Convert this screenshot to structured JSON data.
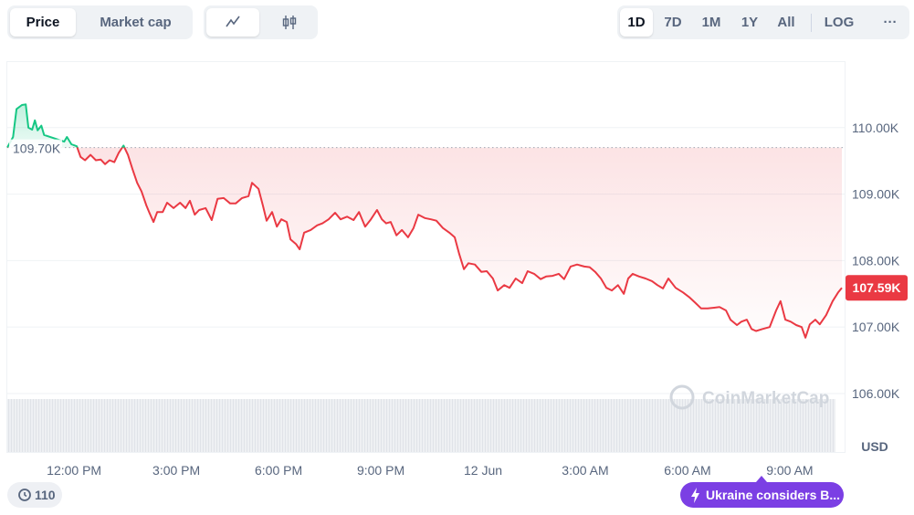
{
  "toolbar": {
    "tabs": [
      "Price",
      "Market cap"
    ],
    "ranges": [
      "1D",
      "7D",
      "1M",
      "1Y",
      "All"
    ],
    "log": "LOG",
    "more": "···"
  },
  "chart_data": {
    "type": "line",
    "ylabel": "USD",
    "watermark": "CoinMarketCap",
    "colors": {
      "up": "#16c784",
      "down": "#ea3943"
    },
    "xlim": [
      10.04,
      34.61
    ],
    "ylim": [
      105120,
      111000
    ],
    "xticks": [
      {
        "value": 12,
        "label": "12:00 PM"
      },
      {
        "value": 15,
        "label": "3:00 PM"
      },
      {
        "value": 18,
        "label": "6:00 PM"
      },
      {
        "value": 21,
        "label": "9:00 PM"
      },
      {
        "value": 24,
        "label": "12 Jun"
      },
      {
        "value": 27,
        "label": "3:00 AM"
      },
      {
        "value": 30,
        "label": "6:00 AM"
      },
      {
        "value": 33,
        "label": "9:00 AM"
      }
    ],
    "yticks": [
      {
        "value": 106000,
        "label": "106.00K"
      },
      {
        "value": 107000,
        "label": "107.00K"
      },
      {
        "value": 108000,
        "label": "108.00K"
      },
      {
        "value": 109000,
        "label": "109.00K"
      },
      {
        "value": 110000,
        "label": "110.00K"
      }
    ],
    "grid": true,
    "baseline": {
      "value": 109700,
      "label": "109.70K"
    },
    "current_price": {
      "value": 107590,
      "label": "107.59K"
    },
    "x": [
      10.04,
      10.21,
      10.31,
      10.47,
      10.58,
      10.66,
      10.77,
      10.85,
      10.93,
      11.04,
      11.12,
      11.71,
      11.79,
      11.92,
      12.08,
      12.19,
      12.32,
      12.48,
      12.64,
      12.78,
      12.91,
      13.04,
      13.18,
      13.31,
      13.45,
      13.58,
      13.71,
      13.85,
      13.98,
      14.12,
      14.2,
      14.33,
      14.44,
      14.6,
      14.73,
      14.92,
      15.11,
      15.27,
      15.4,
      15.54,
      15.67,
      15.86,
      16.04,
      16.21,
      16.39,
      16.58,
      16.74,
      16.93,
      17.12,
      17.22,
      17.41,
      17.54,
      17.65,
      17.81,
      17.95,
      18.08,
      18.24,
      18.35,
      18.51,
      18.62,
      18.75,
      18.94,
      19.13,
      19.29,
      19.47,
      19.66,
      19.82,
      20.01,
      20.2,
      20.36,
      20.54,
      20.71,
      20.89,
      21.03,
      21.16,
      21.29,
      21.46,
      21.62,
      21.8,
      21.96,
      22.1,
      22.29,
      22.47,
      22.63,
      22.82,
      23.01,
      23.17,
      23.3,
      23.44,
      23.57,
      23.76,
      23.95,
      24.11,
      24.29,
      24.43,
      24.62,
      24.78,
      24.96,
      25.15,
      25.31,
      25.5,
      25.69,
      25.85,
      26.04,
      26.22,
      26.38,
      26.57,
      26.76,
      26.97,
      27.13,
      27.29,
      27.46,
      27.62,
      27.78,
      27.96,
      28.13,
      28.26,
      28.39,
      28.58,
      28.77,
      28.96,
      29.12,
      29.28,
      29.44,
      29.65,
      29.87,
      30.05,
      30.24,
      30.4,
      30.59,
      30.78,
      30.94,
      31.13,
      31.26,
      31.45,
      31.58,
      31.74,
      31.88,
      32.01,
      32.2,
      32.41,
      32.6,
      32.73,
      32.87,
      33.03,
      33.19,
      33.35,
      33.46,
      33.59,
      33.75,
      33.88,
      34.07,
      34.26,
      34.42,
      34.53
    ],
    "values": [
      109700,
      109860,
      110280,
      110340,
      110350,
      110000,
      109970,
      110110,
      109960,
      110030,
      109890,
      109790,
      109860,
      109750,
      109720,
      109560,
      109510,
      109590,
      109510,
      109520,
      109450,
      109510,
      109480,
      109620,
      109730,
      109590,
      109380,
      109170,
      109040,
      108830,
      108730,
      108580,
      108730,
      108730,
      108870,
      108790,
      108870,
      108790,
      108900,
      108690,
      108760,
      108790,
      108610,
      108930,
      108940,
      108860,
      108860,
      108940,
      108970,
      109170,
      109080,
      108830,
      108600,
      108730,
      108510,
      108620,
      108580,
      108320,
      108250,
      108170,
      108420,
      108460,
      108530,
      108560,
      108620,
      108720,
      108620,
      108660,
      108610,
      108730,
      108510,
      108620,
      108760,
      108620,
      108560,
      108580,
      108380,
      108460,
      108350,
      108490,
      108690,
      108640,
      108620,
      108600,
      108490,
      108420,
      108350,
      108100,
      107870,
      107960,
      107940,
      107830,
      107840,
      107730,
      107550,
      107630,
      107590,
      107730,
      107660,
      107840,
      107800,
      107720,
      107760,
      107770,
      107800,
      107720,
      107910,
      107940,
      107910,
      107900,
      107830,
      107730,
      107590,
      107550,
      107630,
      107500,
      107730,
      107800,
      107760,
      107730,
      107690,
      107630,
      107580,
      107730,
      107590,
      107520,
      107450,
      107360,
      107280,
      107280,
      107290,
      107300,
      107250,
      107110,
      107030,
      107080,
      107110,
      106970,
      106940,
      106970,
      107000,
      107250,
      107390,
      107110,
      107080,
      107030,
      107000,
      106840,
      107040,
      107110,
      107040,
      107180,
      107390,
      107520,
      107590
    ]
  },
  "footer": {
    "history_count": 110,
    "news": "Ukraine considers B..."
  }
}
